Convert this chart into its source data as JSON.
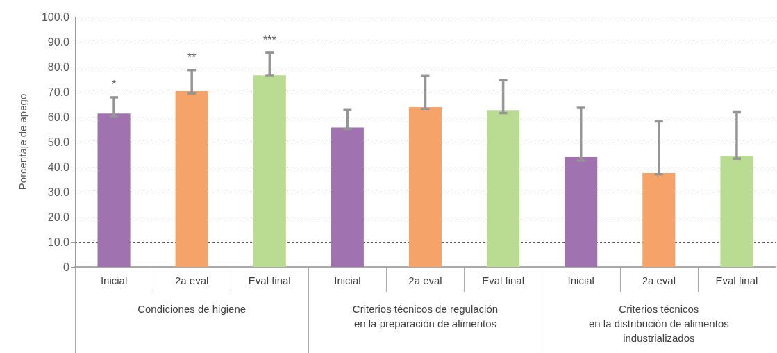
{
  "chart_data": {
    "type": "bar",
    "ylabel": "Porcentaje de apego",
    "categories": [
      "Inicial",
      "2a eval",
      "Eval final",
      "Inicial",
      "2a eval",
      "Eval final",
      "Inicial",
      "2a eval",
      "Eval final"
    ],
    "values": [
      61.3,
      70.3,
      76.6,
      55.7,
      63.9,
      62.4,
      43.9,
      37.5,
      44.4
    ],
    "colors": [
      "#a073b0",
      "#f6a36a",
      "#badb92",
      "#a073b0",
      "#f6a36a",
      "#badb92",
      "#a073b0",
      "#f6a36a",
      "#badb92"
    ],
    "errors": [
      [
        60.1,
        67.8
      ],
      [
        69.4,
        78.7
      ],
      [
        76.4,
        85.6
      ],
      [
        55.1,
        62.7
      ],
      [
        63.1,
        76.3
      ],
      [
        61.5,
        74.7
      ],
      [
        42.5,
        63.6
      ],
      [
        37.0,
        58.2
      ],
      [
        43.3,
        61.8
      ]
    ],
    "value_labels": [
      "*",
      "**",
      "***",
      null,
      null,
      null,
      null,
      null,
      null
    ],
    "annotations": [
      "Condiciones de higiene",
      "Criterios técnicos de regulación\nen la preparación de alimentos",
      "Criterios técnicos\nen la distribución de alimentos\nindustrializados"
    ],
    "ylim": [
      0,
      100
    ],
    "yticks": [
      {
        "value": 0,
        "label": "0"
      },
      {
        "value": 10,
        "label": "10.0"
      },
      {
        "value": 20,
        "label": "20.0"
      },
      {
        "value": 30,
        "label": "30.0"
      },
      {
        "value": 40,
        "label": "40.0"
      },
      {
        "value": 50,
        "label": "50.0"
      },
      {
        "value": 60,
        "label": "60.0"
      },
      {
        "value": 70,
        "label": "70.0"
      },
      {
        "value": 80,
        "label": "80.0"
      },
      {
        "value": 90,
        "label": "90.0"
      },
      {
        "value": 100,
        "label": "100.0"
      }
    ],
    "grid": "y"
  }
}
